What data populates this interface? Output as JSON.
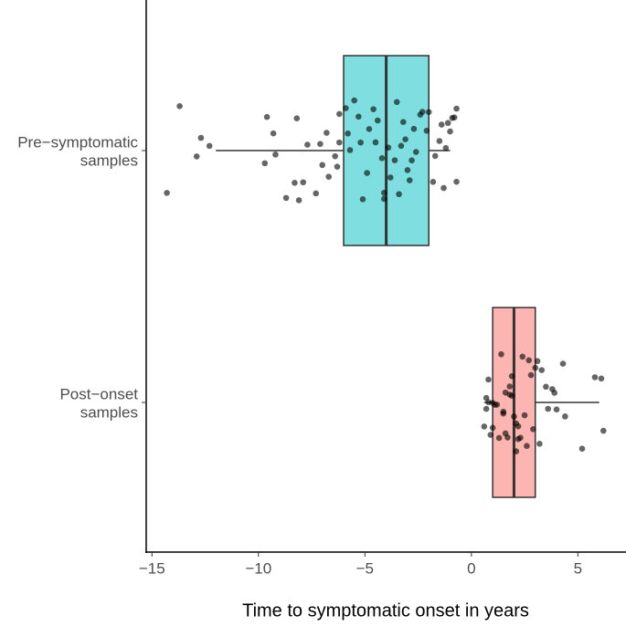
{
  "chart_data": {
    "type": "box",
    "x_label": "Time to symptomatic onset in years",
    "categories": [
      [
        "Pre−symptomatic",
        "samples"
      ],
      [
        "Post−onset",
        "samples"
      ]
    ],
    "boxes": [
      {
        "whislo": -12,
        "q1": -6,
        "med": -4,
        "q3": -2,
        "whishi": -1,
        "color": "#7fdfe0"
      },
      {
        "whislo": 0.6,
        "q1": 1,
        "med": 2,
        "q3": 3,
        "whishi": 6,
        "color": "#fcb5b0"
      }
    ],
    "points": [
      [
        -14.3,
        -13.7,
        -12.9,
        -12.7,
        -12.3,
        -9.7,
        -9.6,
        -9.3,
        -9.2,
        -8.7,
        -8.3,
        -8.2,
        -8.1,
        -7.9,
        -7.7,
        -7.3,
        -7.1,
        -7.0,
        -6.8,
        -6.7,
        -6.4,
        -6.3,
        -6.2,
        -6.2,
        -5.8,
        -5.7,
        -5.5,
        -5.3,
        -5.2,
        -5.1,
        -4.9,
        -4.8,
        -4.5,
        -4.4,
        -4.2,
        -4.1,
        -4.1,
        -3.9,
        -3.8,
        -3.6,
        -3.4,
        -3.3,
        -3.2,
        -3.0,
        -2.9,
        -2.7,
        -2.6,
        -2.4,
        -2.3,
        -2.1,
        -2.0,
        -1.8,
        -1.7,
        -1.5,
        -1.3,
        -1.2,
        -1.1,
        -1.0,
        -0.9,
        -0.8,
        -0.7,
        -0.7,
        -3.5,
        -4.6,
        -5.9,
        -2.8,
        -1.4,
        -3.1
      ],
      [
        0.6,
        0.7,
        0.7,
        0.8,
        0.9,
        1.0,
        1.0,
        1.1,
        1.2,
        1.4,
        1.5,
        1.5,
        1.6,
        1.7,
        1.8,
        1.8,
        1.9,
        2.1,
        2.1,
        2.2,
        2.3,
        2.4,
        2.5,
        2.6,
        2.8,
        2.9,
        3.0,
        3.2,
        3.3,
        3.5,
        3.6,
        3.8,
        3.9,
        4.0,
        4.3,
        4.4,
        5.2,
        5.8,
        6.1,
        6.2,
        1.3,
        2.0,
        2.7,
        0.8,
        1.6,
        2.2,
        3.1,
        1.9
      ]
    ],
    "xlim": [
      -15.27,
      7.26
    ],
    "xticks": [
      {
        "value": -15,
        "label": "−15"
      },
      {
        "value": -10,
        "label": "−10"
      },
      {
        "value": -5,
        "label": "−5"
      },
      {
        "value": 0,
        "label": "0"
      },
      {
        "value": 5,
        "label": "5"
      }
    ]
  }
}
